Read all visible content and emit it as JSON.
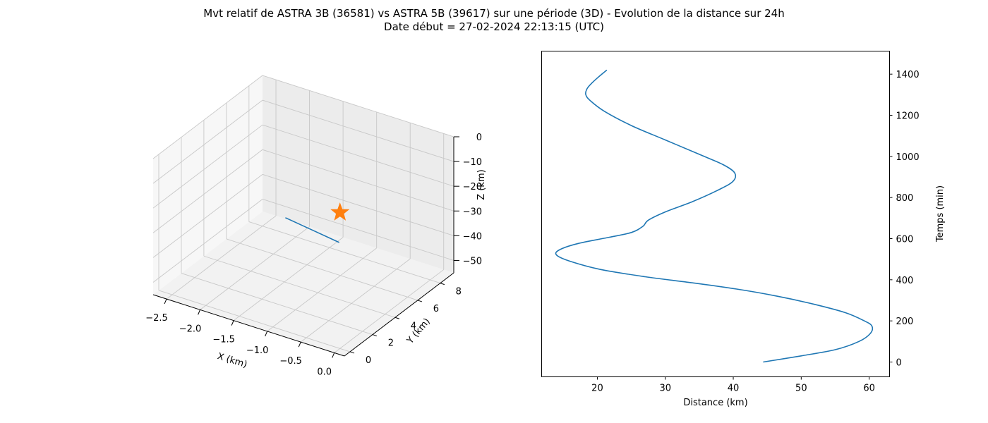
{
  "figure": {
    "title_line1": "Mvt relatif de ASTRA 3B (36581) vs ASTRA 5B (39617) sur une période (3D) - Evolution de la distance sur 24h",
    "title_line2": "Date début = 27-02-2024 22:13:15 (UTC)"
  },
  "chart_data": [
    {
      "type": "line3d",
      "xlabel": "X (km)",
      "ylabel": "Y (km)",
      "zlabel": "Z (km)",
      "xlim": [
        -2.7,
        0.15
      ],
      "ylim": [
        -0.5,
        9.2
      ],
      "zlim": [
        -55,
        0
      ],
      "x_ticks": [
        -2.5,
        -2.0,
        -1.5,
        -1.0,
        -0.5,
        0.0
      ],
      "x_tick_labels": [
        "−2.5",
        "−2.0",
        "−1.5",
        "−1.0",
        "−0.5",
        "0.0"
      ],
      "y_ticks": [
        0,
        2,
        4,
        6,
        8
      ],
      "y_tick_labels": [
        "0",
        "2",
        "4",
        "6",
        "8"
      ],
      "z_ticks": [
        0,
        -10,
        -20,
        -30,
        -40,
        -50
      ],
      "z_tick_labels": [
        "0",
        "−10",
        "−20",
        "−30",
        "−40",
        "−50"
      ],
      "grid": true,
      "series": [
        {
          "type": "line",
          "color": "#1f77b4",
          "x": [
            -1.25,
            -0.9,
            -0.55
          ],
          "y": [
            2.6,
            2.9,
            3.2
          ],
          "z": [
            -22,
            -25,
            -28
          ]
        }
      ],
      "marker": {
        "symbol": "star",
        "color": "#ff7f0e",
        "x": 0,
        "y": 0,
        "z": 0
      }
    },
    {
      "type": "line",
      "xlabel": "Distance (km)",
      "ylabel": "Temps (min)",
      "xlim": [
        11.8,
        63.0
      ],
      "ylim": [
        -72,
        1512
      ],
      "x_ticks": [
        20,
        30,
        40,
        50,
        60
      ],
      "y_ticks": [
        0,
        200,
        400,
        600,
        800,
        1000,
        1200,
        1400
      ],
      "y_axis_side": "right",
      "grid": false,
      "series": [
        {
          "color": "#1f77b4",
          "x": [
            44.4,
            50.0,
            55.0,
            58.5,
            60.2,
            60.4,
            59.3,
            56.5,
            52.0,
            46.5,
            40.5,
            34.0,
            27.0,
            20.5,
            16.0,
            14.0,
            14.4,
            17.0,
            21.5,
            25.0,
            26.7,
            27.5,
            30.0,
            34.0,
            38.0,
            40.0,
            40.2,
            38.5,
            35.0,
            30.0,
            25.0,
            21.0,
            19.0,
            18.3,
            18.5,
            19.3,
            20.3,
            21.4
          ],
          "y": [
            0,
            30,
            60,
            100,
            140,
            175,
            200,
            240,
            280,
            320,
            355,
            385,
            415,
            450,
            490,
            520,
            545,
            575,
            605,
            630,
            660,
            690,
            730,
            780,
            840,
            880,
            920,
            960,
            1010,
            1080,
            1150,
            1220,
            1270,
            1300,
            1330,
            1360,
            1390,
            1420
          ]
        }
      ]
    }
  ]
}
